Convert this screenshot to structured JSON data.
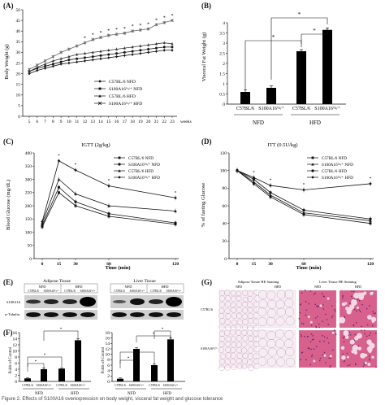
{
  "panels": {
    "A": {
      "letter": "(A)",
      "ylabel": "Body Weight (g)",
      "xunit": "weeks",
      "legend": [
        "C57BL/6     NFD",
        "S100A16ᵀᵍ/⁺  NFD",
        "C57BL/6     HFD",
        "S100A16ᵀᵍ/⁺  HFD"
      ]
    },
    "B": {
      "letter": "(B)",
      "ylabel": "Visceral Fat Weight (g)",
      "cats": [
        "C57BL/6",
        "S100A16ᵀᵍ/⁺",
        "C57BL/6",
        "S100A16ᵀᵍ/⁺"
      ],
      "groups": [
        "NFD",
        "HFD"
      ]
    },
    "C": {
      "letter": "(C)",
      "title": "IGTT (2g/kg)",
      "ylabel": "Blood Glucose (mg/dL)",
      "xlabel": "Time (min)",
      "legend": [
        "C57BL/6     NFD",
        "S100A16ᵀᵍ/⁺  NFD",
        "C57BL/6     HFD",
        "S100A16ᵀᵍ/⁺  HFD"
      ]
    },
    "D": {
      "letter": "(D)",
      "title": "ITT (0.5U/kg)",
      "ylabel": "% of fasting Glucose",
      "xlabel": "Time (min)",
      "legend": [
        "C57BL/6     NFD",
        "S100A16ᵀᵍ/⁺  NFD",
        "C57BL/6     HFD",
        "S100A16ᵀᵍ/⁺  HFD"
      ]
    },
    "E": {
      "letter": "(E)",
      "left_title": "Adipose Tissue",
      "right_title": "Liver Tissue",
      "groups": [
        "NFD",
        "HFD",
        "NFD",
        "HFD"
      ],
      "lanes": [
        "C57BL/6",
        "S100A16ᵀᵍ/⁺",
        "C57BL/6",
        "S100A16ᵀᵍ/⁺",
        "C57BL/6",
        "S100A16ᵀᵍ/⁺",
        "C57BL/6",
        "S100A16ᵀᵍ/⁺"
      ],
      "rows": [
        "S100A16",
        "α-Tubulin"
      ]
    },
    "F": {
      "letter": "(F)",
      "ylabel": "Folds of Control",
      "cats": [
        "C57BL/6",
        "S100A16ᵀᵍ/⁺",
        "C57BL/6",
        "S100A16ᵀᵍ/⁺"
      ],
      "groups": [
        "NFD",
        "HFD"
      ]
    },
    "G": {
      "letter": "(G)",
      "left_title": "Adipose Tissue HE Staining",
      "right_title": "Liver Tissue HE Staining",
      "cols": [
        "NFD",
        "HFD",
        "NFD",
        "HFD"
      ],
      "rows": [
        "C57BL/6",
        "S100A16ᵀᵍ/⁺"
      ]
    }
  },
  "footer": "Figure 2. Effects of S100A16 overexpression on body weight, visceral fat weight and glucose tolerance",
  "chart_data": [
    {
      "panel": "A",
      "type": "line",
      "x": [
        5,
        6,
        7,
        8,
        9,
        10,
        11,
        12,
        13,
        14,
        15,
        16,
        17,
        18,
        19,
        20,
        21,
        22,
        23
      ],
      "xlabel": "weeks",
      "ylabel": "Body Weight (g)",
      "ylim": [
        0,
        50
      ],
      "yticks": [
        0,
        5,
        10,
        15,
        20,
        25,
        30,
        35,
        40,
        45,
        50
      ],
      "series": [
        {
          "name": "C57BL/6 NFD",
          "marker": "diamond",
          "values": [
            20,
            21.5,
            22.5,
            23.5,
            24.5,
            25,
            25.5,
            26,
            26.5,
            27,
            27.5,
            28,
            28.5,
            29,
            29.5,
            30,
            30.5,
            31,
            31
          ]
        },
        {
          "name": "S100A16Tg/+ NFD",
          "marker": "square",
          "values": [
            21,
            22.5,
            23.5,
            24.5,
            25.5,
            26.5,
            27,
            27.5,
            28,
            28.5,
            29,
            29.5,
            30,
            30.5,
            31,
            31.5,
            32,
            32.5,
            32.5
          ]
        },
        {
          "name": "C57BL/6 HFD",
          "marker": "triangle",
          "values": [
            21,
            23,
            24.5,
            26,
            27,
            28,
            29,
            29.5,
            30,
            30.5,
            31,
            31.5,
            32,
            32.5,
            33,
            33.5,
            34,
            34.5,
            34
          ]
        },
        {
          "name": "S100A16Tg/+ HFD",
          "marker": "x",
          "values": [
            22,
            24,
            26,
            28,
            30,
            31.5,
            33,
            34.5,
            36,
            37,
            38,
            38.5,
            39,
            40,
            40.5,
            41,
            43,
            44,
            45
          ]
        }
      ]
    },
    {
      "panel": "B",
      "type": "bar",
      "categories": [
        "C57BL/6 NFD",
        "S100A16Tg/+ NFD",
        "C57BL/6 HFD",
        "S100A16Tg/+ HFD"
      ],
      "values": [
        0.6,
        0.8,
        2.6,
        3.65
      ],
      "errors": [
        0.1,
        0.1,
        0.08,
        0.1
      ],
      "ylabel": "Visceral Fat Weight (g)",
      "ylim": [
        0,
        4
      ],
      "yticks": [
        0,
        0.5,
        1,
        1.5,
        2,
        2.5,
        3,
        3.5,
        4
      ]
    },
    {
      "panel": "C",
      "type": "line",
      "x": [
        0,
        15,
        30,
        60,
        120
      ],
      "xlabel": "Time (min)",
      "ylabel": "Blood Glucose (mg/dL)",
      "ylim": [
        0,
        400
      ],
      "yticks": [
        0,
        50,
        100,
        150,
        200,
        250,
        300,
        350,
        400
      ],
      "series": [
        {
          "name": "C57BL/6 NFD",
          "marker": "square",
          "values": [
            120,
            250,
            200,
            160,
            130
          ]
        },
        {
          "name": "S100A16Tg/+ NFD",
          "marker": "circle",
          "values": [
            125,
            270,
            215,
            170,
            135
          ]
        },
        {
          "name": "C57BL/6 HFD",
          "marker": "triangle",
          "values": [
            135,
            300,
            245,
            200,
            180
          ]
        },
        {
          "name": "S100A16Tg/+ HFD",
          "marker": "diamond",
          "values": [
            140,
            370,
            335,
            275,
            230
          ]
        }
      ]
    },
    {
      "panel": "D",
      "type": "line",
      "x": [
        0,
        15,
        30,
        60,
        120
      ],
      "xlabel": "Time (min)",
      "ylabel": "% of fasting Glucose",
      "ylim": [
        0,
        120
      ],
      "yticks": [
        0,
        20,
        40,
        60,
        80,
        100,
        120
      ],
      "series": [
        {
          "name": "C57BL/6 NFD",
          "marker": "square",
          "values": [
            100,
            85,
            70,
            50,
            40
          ]
        },
        {
          "name": "S100A16Tg/+ NFD",
          "marker": "triangle",
          "values": [
            100,
            87,
            72,
            52,
            43
          ]
        },
        {
          "name": "C57BL/6 HFD",
          "marker": "circle",
          "values": [
            100,
            90,
            75,
            55,
            45
          ]
        },
        {
          "name": "S100A16Tg/+ HFD",
          "marker": "diamond",
          "values": [
            100,
            92,
            83,
            78,
            85
          ]
        }
      ]
    },
    {
      "panel": "F-left",
      "type": "bar",
      "categories": [
        "C57BL/6 NFD",
        "S100A16Tg/+ NFD",
        "C57BL/6 HFD",
        "S100A16Tg/+ HFD"
      ],
      "values": [
        1,
        4,
        4.2,
        13.5
      ],
      "errors": [
        0.2,
        0.4,
        0.3,
        0.5
      ],
      "ylabel": "Folds of Control",
      "ylim": [
        0,
        16
      ],
      "yticks": [
        0,
        2,
        4,
        6,
        8,
        10,
        12,
        14,
        16
      ]
    },
    {
      "panel": "F-right",
      "type": "bar",
      "categories": [
        "C57BL/6 NFD",
        "S100A16Tg/+ NFD",
        "C57BL/6 HFD",
        "S100A16Tg/+ HFD"
      ],
      "values": [
        1,
        12,
        6,
        15.5
      ],
      "errors": [
        0.3,
        0.5,
        0.5,
        0.5
      ],
      "ylabel": "Folds of Control",
      "ylim": [
        0,
        18
      ],
      "yticks": [
        0,
        2,
        4,
        6,
        8,
        10,
        12,
        14,
        16,
        18
      ]
    }
  ]
}
